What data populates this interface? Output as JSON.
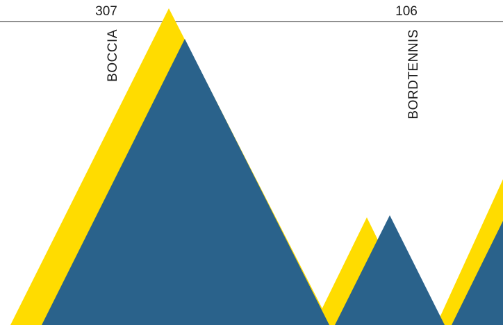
{
  "chart_data": {
    "type": "area",
    "categories": [
      "BOCCIA",
      "BORDTENNIS"
    ],
    "values": [
      307,
      106
    ],
    "colors": {
      "front": "#2a628b",
      "back": "#ffdc00",
      "rule": "#222222",
      "text": "#1a1a1a"
    },
    "grid": false,
    "legend": "none"
  }
}
